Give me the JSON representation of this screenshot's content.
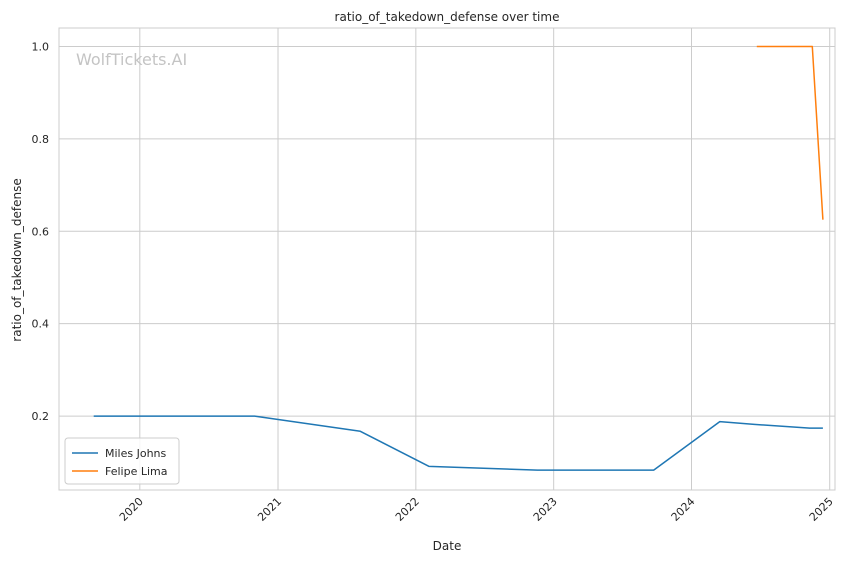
{
  "chart_data": {
    "type": "line",
    "title": "ratio_of_takedown_defense over time",
    "xlabel": "Date",
    "ylabel": "ratio_of_takedown_defense",
    "watermark": "WolfTickets.AI",
    "xlim": [
      "2019-06-01",
      "2025-01-15"
    ],
    "ylim": [
      0.04,
      1.04
    ],
    "x_ticks": [
      {
        "date": "2020-01-01",
        "label": "2020"
      },
      {
        "date": "2021-01-01",
        "label": "2021"
      },
      {
        "date": "2022-01-01",
        "label": "2022"
      },
      {
        "date": "2023-01-01",
        "label": "2023"
      },
      {
        "date": "2024-01-01",
        "label": "2024"
      },
      {
        "date": "2025-01-01",
        "label": "2025"
      }
    ],
    "y_ticks": [
      {
        "value": 0.2,
        "label": "0.2"
      },
      {
        "value": 0.4,
        "label": "0.4"
      },
      {
        "value": 0.6,
        "label": "0.6"
      },
      {
        "value": 0.8,
        "label": "0.8"
      },
      {
        "value": 1.0,
        "label": "1.0"
      }
    ],
    "grid": true,
    "legend_position": "lower-left",
    "series": [
      {
        "name": "Miles Johns",
        "color": "#1f77b4",
        "points": [
          {
            "x": "2019-09-01",
            "y": 0.2
          },
          {
            "x": "2020-10-31",
            "y": 0.2
          },
          {
            "x": "2021-08-07",
            "y": 0.167
          },
          {
            "x": "2022-02-05",
            "y": 0.091
          },
          {
            "x": "2022-11-19",
            "y": 0.083
          },
          {
            "x": "2023-09-23",
            "y": 0.083
          },
          {
            "x": "2024-03-16",
            "y": 0.188
          },
          {
            "x": "2024-06-15",
            "y": 0.182
          },
          {
            "x": "2024-11-09",
            "y": 0.174
          },
          {
            "x": "2024-12-14",
            "y": 0.174
          }
        ]
      },
      {
        "name": "Felipe Lima",
        "color": "#ff7f0e",
        "points": [
          {
            "x": "2024-06-22",
            "y": 1.0
          },
          {
            "x": "2024-11-16",
            "y": 1.0
          },
          {
            "x": "2024-12-14",
            "y": 0.625
          }
        ]
      }
    ]
  }
}
